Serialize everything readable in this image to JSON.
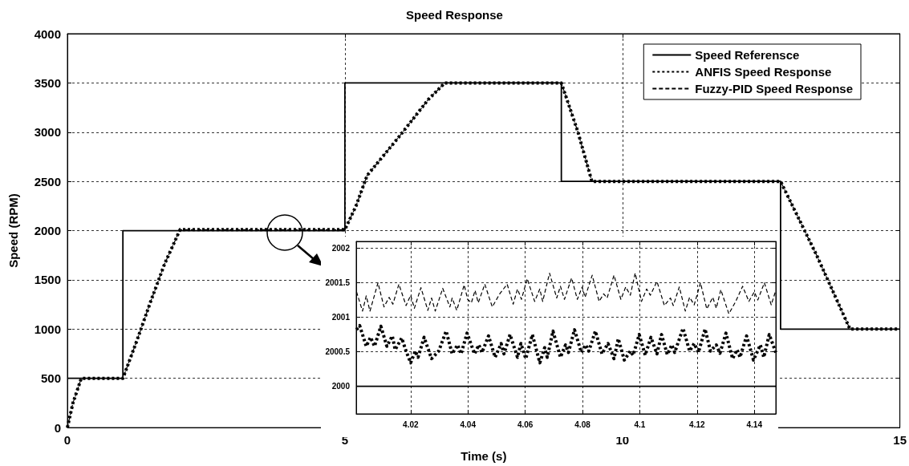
{
  "chart_data": [
    {
      "type": "line",
      "title": "Speed Response",
      "xlabel": "Time (s)",
      "ylabel": "Speed (RPM)",
      "xlim": [
        0,
        15
      ],
      "xticks": [
        0,
        5,
        10,
        15
      ],
      "ylim": [
        0,
        4000
      ],
      "yticks": [
        0,
        500,
        1000,
        1500,
        2000,
        2500,
        3000,
        3500,
        4000
      ],
      "grid": true,
      "legend": "top right",
      "marker": "none",
      "series": [
        {
          "name": "Speed Referensce",
          "color": "#000000",
          "line_style": "solid",
          "x": [
            0,
            1,
            1,
            5,
            5,
            8.9,
            8.9,
            12.85,
            12.85,
            15
          ],
          "values": [
            500,
            500,
            2000,
            2000,
            3500,
            3500,
            2500,
            2500,
            1000,
            1000
          ]
        },
        {
          "name": "ANFIS Speed Response",
          "color": "#000000",
          "line_style": "dotted",
          "x": [
            0,
            0.1,
            0.25,
            1,
            1.25,
            1.5,
            1.75,
            2.03,
            3,
            5,
            5.2,
            5.4,
            6,
            6.5,
            6.8,
            8.9,
            9.2,
            9.45,
            12.85,
            13.5,
            14.1,
            15
          ],
          "values": [
            0,
            250,
            500,
            500,
            880,
            1280,
            1660,
            2010,
            2010,
            2010,
            2250,
            2560,
            2970,
            3330,
            3500,
            3500,
            3000,
            2500,
            2500,
            1750,
            1000,
            1000
          ]
        },
        {
          "name": "Fuzzy-PID Speed Response",
          "color": "#000000",
          "line_style": "dashed",
          "x": [
            0,
            0.1,
            0.25,
            1,
            1.25,
            1.5,
            1.75,
            2.03,
            3,
            5,
            5.2,
            5.4,
            6,
            6.5,
            6.8,
            8.9,
            9.2,
            9.45,
            12.85,
            13.5,
            14.1,
            15
          ],
          "values": [
            0,
            250,
            500,
            500,
            880,
            1280,
            1660,
            2010,
            2010,
            2010,
            2250,
            2560,
            2970,
            3330,
            3500,
            3500,
            3000,
            2500,
            2500,
            1750,
            1000,
            1000
          ]
        }
      ]
    },
    {
      "type": "line",
      "xlim": [
        4.001,
        4.1475
      ],
      "xticks": [
        4.02,
        4.04,
        4.06,
        4.08,
        4.1,
        4.12,
        4.14
      ],
      "ylim": [
        1999.6,
        2002.1
      ],
      "yticks": [
        2000,
        2000.5,
        2001,
        2001.5,
        2002
      ],
      "grid": true,
      "marker": "none",
      "series": [
        {
          "color": "#000000",
          "line_style": "solid",
          "x": [
            4.001,
            4.1475
          ],
          "values": [
            2000,
            2000
          ]
        },
        {
          "color": "#000000",
          "line_style": "dotted",
          "x": [
            4.0011,
            4.0022,
            4.0045,
            4.006,
            4.0074,
            4.0096,
            4.0117,
            4.0136,
            4.0146,
            4.0169,
            4.0184,
            4.02,
            4.0216,
            4.0226,
            4.0247,
            4.0273,
            4.0298,
            4.0324,
            4.0345,
            4.0364,
            4.0376,
            4.0397,
            4.0423,
            4.0438,
            4.0449,
            4.0472,
            4.0495,
            4.0516,
            4.0526,
            4.0547,
            4.0573,
            4.0585,
            4.0602,
            4.0625,
            4.0651,
            4.0668,
            4.0677,
            4.0697,
            4.0723,
            4.0741,
            4.0751,
            4.0772,
            4.0796,
            4.0811,
            4.0822,
            4.0845,
            4.0868,
            4.0889,
            4.091,
            4.0925,
            4.0946,
            4.0967,
            4.0977,
            4.0998,
            4.1019,
            4.1039,
            4.106,
            4.1076,
            4.1096,
            4.1112,
            4.1122,
            4.1151,
            4.1174,
            4.119,
            4.1205,
            4.1228,
            4.1247,
            4.1267,
            4.128,
            4.1301,
            4.1324,
            4.134,
            4.135,
            4.1373,
            4.1397,
            4.1421,
            4.1433,
            4.1452,
            4.1475
          ],
          "values": [
            2000.82,
            2000.88,
            2000.58,
            2000.71,
            2000.58,
            2000.87,
            2000.58,
            2000.73,
            2000.53,
            2000.7,
            2000.51,
            2000.34,
            2000.51,
            2000.42,
            2000.71,
            2000.4,
            2000.51,
            2000.8,
            2000.47,
            2000.6,
            2000.47,
            2000.77,
            2000.47,
            2000.6,
            2000.49,
            2000.73,
            2000.42,
            2000.62,
            2000.47,
            2000.75,
            2000.42,
            2000.62,
            2000.4,
            2000.75,
            2000.34,
            2000.56,
            2000.42,
            2000.8,
            2000.42,
            2000.6,
            2000.49,
            2000.82,
            2000.49,
            2000.6,
            2000.51,
            2000.8,
            2000.47,
            2000.62,
            2000.4,
            2000.69,
            2000.38,
            2000.51,
            2000.45,
            2000.75,
            2000.45,
            2000.71,
            2000.47,
            2000.75,
            2000.46,
            2000.6,
            2000.49,
            2000.84,
            2000.51,
            2000.62,
            2000.49,
            2000.83,
            2000.51,
            2000.6,
            2000.48,
            2000.77,
            2000.4,
            2000.53,
            2000.42,
            2000.73,
            2000.38,
            2000.6,
            2000.42,
            2000.75,
            2000.49
          ]
        },
        {
          "color": "#000000",
          "line_style": "dashed",
          "x": [
            4.0011,
            4.0032,
            4.0045,
            4.0058,
            4.0086,
            4.0107,
            4.0125,
            4.0138,
            4.0159,
            4.0184,
            4.02,
            4.0213,
            4.0236,
            4.026,
            4.0273,
            4.0286,
            4.0312,
            4.0337,
            4.0345,
            4.0361,
            4.0387,
            4.0399,
            4.0412,
            4.0425,
            4.0436,
            4.0459,
            4.0485,
            4.0511,
            4.0537,
            4.0558,
            4.0573,
            4.0587,
            4.0607,
            4.0633,
            4.0651,
            4.0661,
            4.0685,
            4.071,
            4.0723,
            4.0737,
            4.0762,
            4.0782,
            4.0799,
            4.0809,
            4.0834,
            4.0858,
            4.0874,
            4.0886,
            4.091,
            4.0934,
            4.0951,
            4.0967,
            4.0984,
            4.1006,
            4.1024,
            4.1037,
            4.106,
            4.1086,
            4.1107,
            4.1117,
            4.1138,
            4.1159,
            4.1174,
            4.119,
            4.1212,
            4.1234,
            4.1255,
            4.1267,
            4.1283,
            4.1311,
            4.1335,
            4.1359,
            4.1381,
            4.14,
            4.1412,
            4.1435,
            4.1459,
            4.1475
          ],
          "values": [
            2001.37,
            2001.09,
            2001.31,
            2001.09,
            2001.5,
            2001.15,
            2001.29,
            2001.19,
            2001.48,
            2001.17,
            2001.32,
            2001.13,
            2001.43,
            2001.1,
            2001.28,
            2001.09,
            2001.42,
            2001.15,
            2001.28,
            2001.1,
            2001.47,
            2001.26,
            2001.21,
            2001.39,
            2001.21,
            2001.48,
            2001.15,
            2001.34,
            2001.48,
            2001.19,
            2001.41,
            2001.26,
            2001.56,
            2001.23,
            2001.41,
            2001.23,
            2001.64,
            2001.28,
            2001.45,
            2001.26,
            2001.57,
            2001.26,
            2001.44,
            2001.29,
            2001.61,
            2001.23,
            2001.34,
            2001.28,
            2001.61,
            2001.26,
            2001.44,
            2001.32,
            2001.64,
            2001.23,
            2001.41,
            2001.32,
            2001.52,
            2001.17,
            2001.28,
            2001.17,
            2001.44,
            2001.09,
            2001.29,
            2001.18,
            2001.5,
            2001.12,
            2001.29,
            2001.13,
            2001.4,
            2001.05,
            2001.23,
            2001.45,
            2001.23,
            2001.37,
            2001.25,
            2001.5,
            2001.18,
            2001.39
          ]
        }
      ]
    }
  ]
}
